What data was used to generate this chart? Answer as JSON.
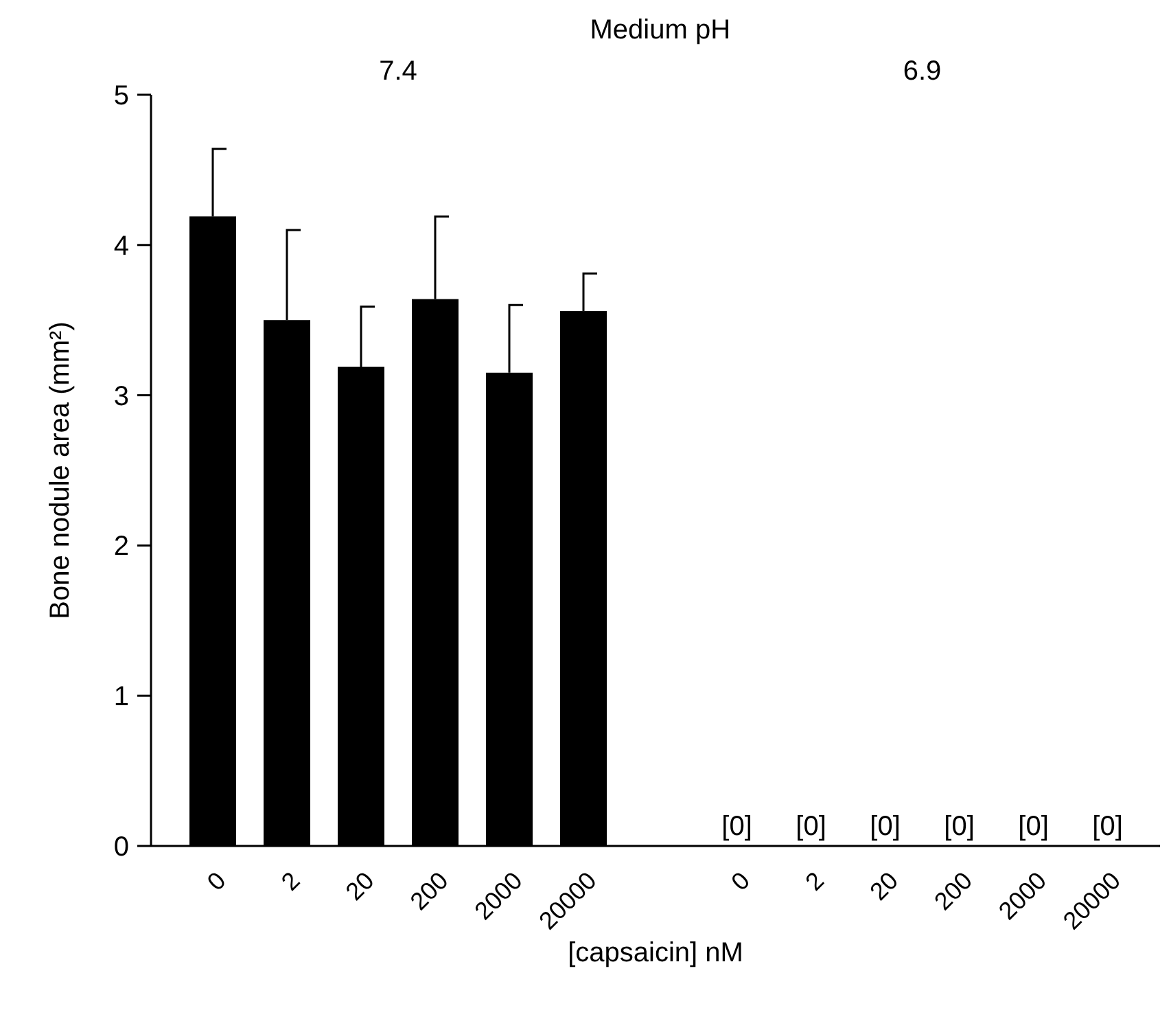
{
  "chart_data": {
    "type": "bar",
    "xlabel": "[capsaicin] nM",
    "ylabel": "Bone nodule area (mm²)",
    "categories": [
      "0",
      "2",
      "20",
      "200",
      "2000",
      "20000",
      "0",
      "2",
      "20",
      "200",
      "2000",
      "20000"
    ],
    "values": [
      4.19,
      3.5,
      3.19,
      3.64,
      3.15,
      3.56,
      0,
      0,
      0,
      0,
      0,
      0
    ],
    "errors": [
      [
        4.19,
        4.64
      ],
      [
        3.5,
        4.1
      ],
      [
        3.19,
        3.59
      ],
      [
        3.64,
        4.19
      ],
      [
        3.15,
        3.6
      ],
      [
        3.56,
        3.81
      ],
      null,
      null,
      null,
      null,
      null,
      null
    ],
    "value_labels": [
      null,
      null,
      null,
      null,
      null,
      null,
      "[0]",
      "[0]",
      "[0]",
      "[0]",
      "[0]",
      "[0]"
    ],
    "color": "#000000",
    "ylim": [
      0,
      5
    ],
    "yticks": [
      0,
      1,
      2,
      3,
      4,
      5
    ],
    "grid": false,
    "annotations": [
      "Medium pH",
      "7.4",
      "6.9"
    ]
  }
}
